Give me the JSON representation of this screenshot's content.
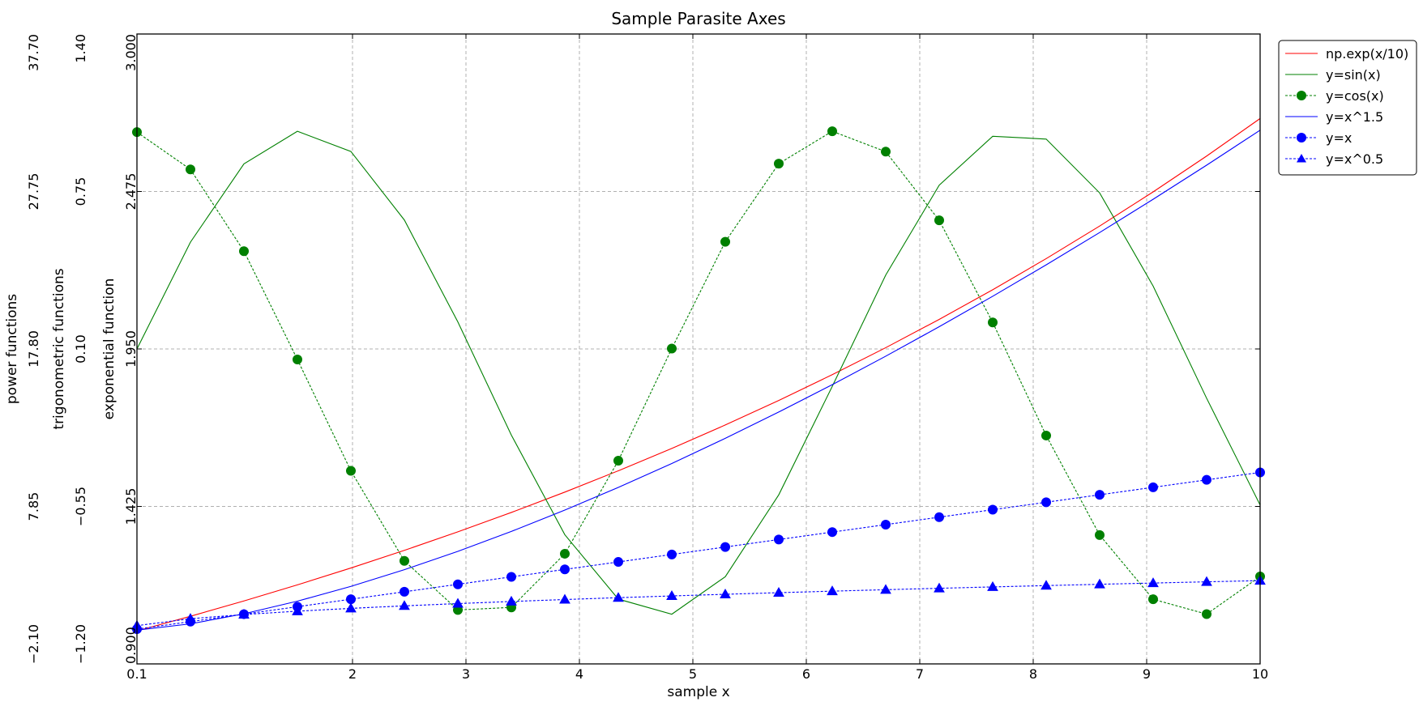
{
  "chart_data": {
    "type": "line",
    "title": "Sample Parasite Axes",
    "xlabel": "sample x",
    "xlim": [
      0.1,
      10
    ],
    "xticks": [
      "0.1",
      "2",
      "3",
      "4",
      "5",
      "6",
      "7",
      "8",
      "9",
      "10"
    ],
    "x_tick_values": [
      0.1,
      2,
      3,
      4,
      5,
      6,
      7,
      8,
      9,
      10
    ],
    "grid": true,
    "legend_position": "outside-top-right",
    "y_axes": [
      {
        "id": "exp",
        "label": "exponential function",
        "ylim": [
          0.9,
          3.0
        ],
        "ticks": [
          "0.900",
          "1.425",
          "1.950",
          "2.475",
          "3.000"
        ]
      },
      {
        "id": "trig",
        "label": "trigonometric functions",
        "ylim": [
          -1.2,
          1.4
        ],
        "ticks": [
          "−1.20",
          "−0.55",
          "0.10",
          "0.75",
          "1.40"
        ]
      },
      {
        "id": "power",
        "label": "power functions",
        "ylim": [
          -2.1,
          37.7
        ],
        "ticks": [
          "−2.10",
          "7.85",
          "17.80",
          "27.75",
          "37.70"
        ]
      }
    ],
    "x": [
      0.1,
      0.5714,
      1.0429,
      1.5143,
      1.9857,
      2.4571,
      2.9286,
      3.4,
      3.8714,
      4.3429,
      4.8143,
      5.2857,
      5.7571,
      6.2286,
      6.7,
      7.1714,
      7.6429,
      8.1143,
      8.5857,
      9.0571,
      9.5286,
      10.0
    ],
    "series": [
      {
        "name": "np.exp(x/10)",
        "axis": "exp",
        "color": "#ff0000",
        "linestyle": "solid",
        "marker": "none",
        "function": "exp(x/10)"
      },
      {
        "name": "y=sin(x)",
        "axis": "trig",
        "color": "#008000",
        "linestyle": "solid",
        "marker": "none",
        "function": "sin(x)"
      },
      {
        "name": "y=cos(x)",
        "axis": "trig",
        "color": "#008000",
        "linestyle": "dashed",
        "marker": "circle",
        "function": "cos(x)"
      },
      {
        "name": "y=x^1.5",
        "axis": "power",
        "color": "#0000ff",
        "linestyle": "solid",
        "marker": "none",
        "function": "x^1.5"
      },
      {
        "name": "y=x",
        "axis": "power",
        "color": "#0000ff",
        "linestyle": "dashed",
        "marker": "circle",
        "function": "x"
      },
      {
        "name": "y=x^0.5",
        "axis": "power",
        "color": "#0000ff",
        "linestyle": "dashed",
        "marker": "triangle",
        "function": "x^0.5"
      }
    ]
  }
}
